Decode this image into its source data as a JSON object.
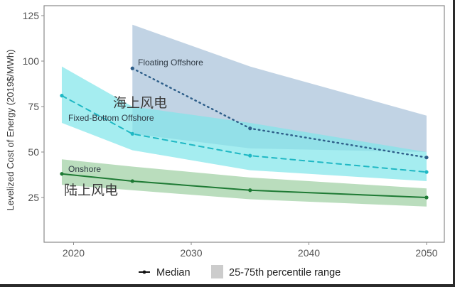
{
  "chart_data": {
    "type": "line",
    "title": "",
    "xlabel": "",
    "ylabel": "Levelized Cost of Energy (2019$/MWh)",
    "xlim": [
      2017.5,
      2051.5
    ],
    "ylim": [
      0,
      127
    ],
    "x_ticks": [
      2020,
      2030,
      2040,
      2050
    ],
    "x_tick_labels": [
      "2020",
      "2030",
      "2040",
      "2050"
    ],
    "y_ticks": [
      25,
      50,
      75,
      100,
      125
    ],
    "y_tick_labels": [
      "25",
      "50",
      "75",
      "100",
      "125"
    ],
    "grid": false,
    "series": [
      {
        "name": "Floating Offshore",
        "annotation": "海上风电",
        "line_style": "dotted",
        "color": "#2f5f8a",
        "band_color": "#a9c2d9",
        "x": [
          2025,
          2035,
          2050
        ],
        "median": [
          96,
          63,
          47
        ],
        "p75": [
          120,
          97,
          70
        ],
        "p25": [
          60,
          52,
          50
        ]
      },
      {
        "name": "Fixed-Bottom Offshore",
        "line_style": "dashed",
        "color": "#1fb8c4",
        "band_color": "#7fe6ea",
        "x": [
          2019,
          2025,
          2035,
          2050
        ],
        "median": [
          81,
          60,
          48,
          39
        ],
        "p75": [
          97,
          75,
          66,
          50
        ],
        "p25": [
          66,
          51,
          40,
          34
        ]
      },
      {
        "name": "Onshore",
        "annotation": "陆上风电",
        "line_style": "solid",
        "color": "#1e7a34",
        "band_color": "#9fd0a4",
        "x": [
          2019,
          2025,
          2035,
          2050
        ],
        "median": [
          38,
          34,
          29,
          25
        ],
        "p75": [
          46,
          42,
          36,
          30
        ],
        "p25": [
          32,
          29,
          24,
          20
        ]
      }
    ],
    "legend": {
      "placement": "bottom",
      "entries": [
        {
          "label": "Median",
          "symbol": "line-point",
          "color": "#111111"
        },
        {
          "label": "25-75th percentile range",
          "symbol": "box",
          "color": "#cccccc"
        }
      ]
    }
  }
}
